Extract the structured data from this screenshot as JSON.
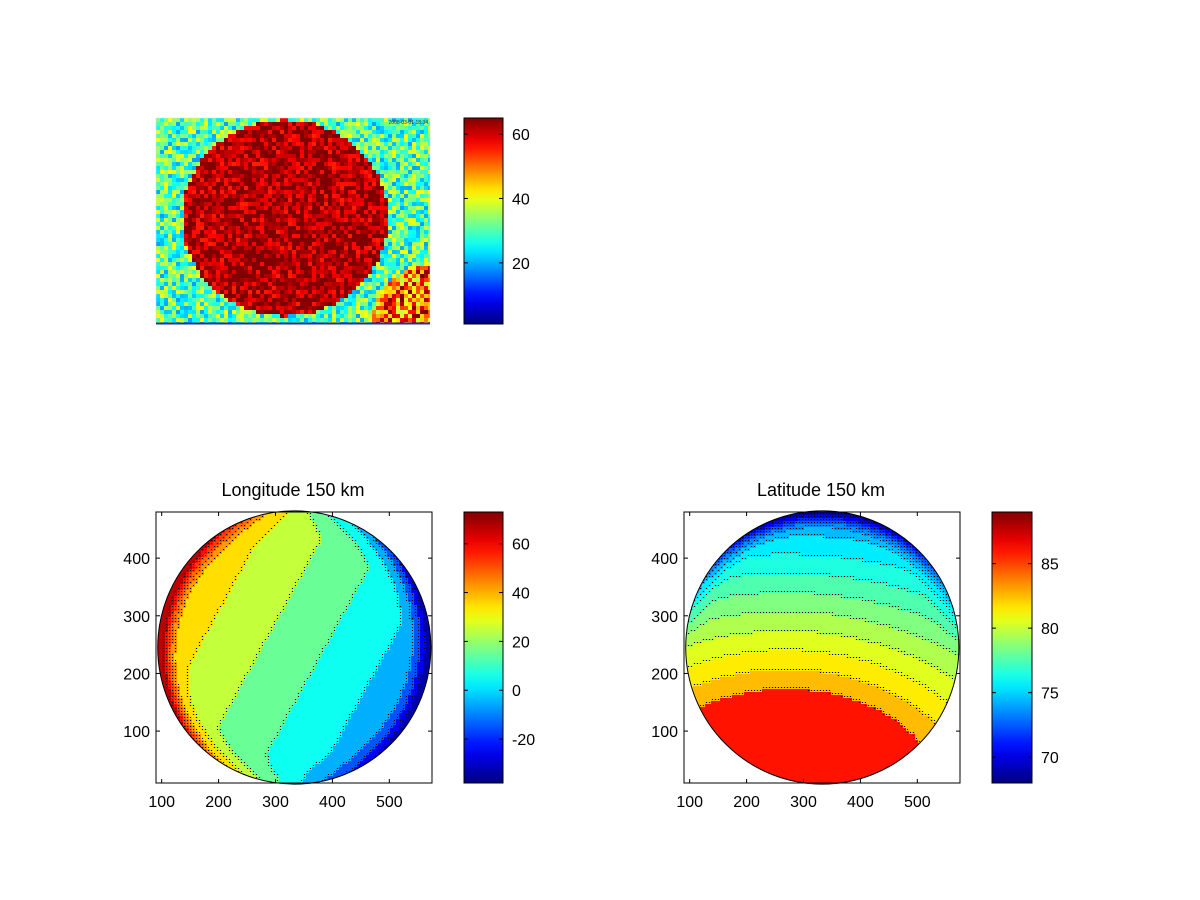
{
  "chart_data": [
    {
      "type": "heatmap",
      "title": "",
      "xlabel": "",
      "ylabel": "",
      "axes_ticks": "off",
      "inset_text": "2008-03-01 18:34",
      "colormap": "jet",
      "clim": [
        1,
        65
      ],
      "colorbar": {
        "ticks": [
          20,
          40,
          60
        ],
        "labels": [
          "20",
          "40",
          "60"
        ]
      },
      "description_values": {
        "disk_level": 62,
        "background_level": 30
      }
    },
    {
      "type": "heatmap",
      "subtype": "filled-contour",
      "title": "Longitude 150 km",
      "xlabel": "",
      "ylabel": "",
      "xlim": [
        90,
        575
      ],
      "ylim": [
        10,
        480
      ],
      "xticks": [
        100,
        200,
        300,
        400,
        500
      ],
      "yticks": [
        100,
        200,
        300,
        400
      ],
      "colormap": "jet",
      "clim": [
        -38,
        73
      ],
      "colorbar": {
        "ticks": [
          -20,
          0,
          20,
          40,
          60
        ],
        "labels": [
          "-20",
          "0",
          "20",
          "40",
          "60"
        ]
      },
      "disk": {
        "center": [
          333,
          245
        ],
        "radius": 240
      },
      "contour_levels": [
        -30,
        -20,
        -10,
        0,
        10,
        20,
        30,
        40,
        45,
        50,
        55,
        60
      ],
      "field": {
        "base": 15,
        "gradient_x": -0.09,
        "gradient_y": 0.05
      }
    },
    {
      "type": "heatmap",
      "subtype": "filled-contour",
      "title": "Latitude 150 km",
      "xlabel": "",
      "ylabel": "",
      "xlim": [
        90,
        575
      ],
      "ylim": [
        10,
        480
      ],
      "xticks": [
        100,
        200,
        300,
        400,
        500
      ],
      "yticks": [
        100,
        200,
        300,
        400
      ],
      "colormap": "jet",
      "clim": [
        68,
        89
      ],
      "colorbar": {
        "ticks": [
          70,
          75,
          80,
          85
        ],
        "labels": [
          "70",
          "75",
          "80",
          "85"
        ]
      },
      "disk": {
        "center": [
          333,
          245
        ],
        "radius": 240
      },
      "contour_levels": [
        69,
        70,
        71,
        72,
        73,
        74,
        75,
        76,
        77,
        78,
        79,
        80,
        81,
        82,
        83
      ],
      "field": {
        "peak": 88.5,
        "peak_at": [
          270,
          -10
        ],
        "decay": 0.0275
      }
    }
  ]
}
